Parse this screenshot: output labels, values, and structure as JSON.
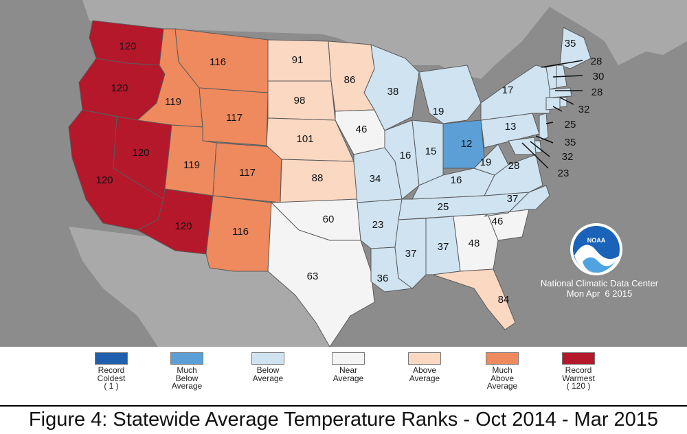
{
  "colors": {
    "record_coldest": "#1f5fad",
    "much_below": "#5c9fd6",
    "below": "#cfe3f1",
    "near": "#f4f4f4",
    "above": "#fbd8c2",
    "much_above": "#ee8a5e",
    "record_warmest": "#b5172b"
  },
  "states": {
    "WA": "120",
    "OR": "120",
    "CA": "120",
    "NV": "120",
    "AZ": "120",
    "ID": "119",
    "MT": "116",
    "WY": "117",
    "UT": "119",
    "CO": "117",
    "NM": "116",
    "ND": "91",
    "SD": "98",
    "NE": "101",
    "KS": "88",
    "OK": "60",
    "TX": "63",
    "MN": "86",
    "IA": "46",
    "MO": "34",
    "AR": "23",
    "LA": "36",
    "WI": "38",
    "IL": "16",
    "MI": "19",
    "IN": "15",
    "OH": "12",
    "KY": "16",
    "TN": "25",
    "MS": "37",
    "AL": "37",
    "GA": "48",
    "FL": "84",
    "SC": "46",
    "NC": "37",
    "VA": "28",
    "WV": "19",
    "PA": "13",
    "NY": "17",
    "ME": "35",
    "NH": "28",
    "VT": "30",
    "MA": "28",
    "RI": "32",
    "CT": "25",
    "NJ": "35",
    "DE": "32",
    "MD": "23"
  },
  "ncdc": {
    "name": "National Climatic Data Center",
    "date": "Mon Apr  6 2015",
    "logo_text": "NOAA"
  },
  "legend": [
    {
      "lines": [
        "Record",
        "Coldest",
        "( 1 )"
      ],
      "color": "#1f5fad"
    },
    {
      "lines": [
        "Much",
        "Below",
        "Average"
      ],
      "color": "#5c9fd6"
    },
    {
      "lines": [
        "Below",
        "Average"
      ],
      "color": "#cfe3f1"
    },
    {
      "lines": [
        "Near",
        "Average"
      ],
      "color": "#f4f4f4"
    },
    {
      "lines": [
        "Above",
        "Average"
      ],
      "color": "#fbd8c2"
    },
    {
      "lines": [
        "Much",
        "Above",
        "Average"
      ],
      "color": "#ee8a5e"
    },
    {
      "lines": [
        "Record",
        "Warmest",
        "( 120 )"
      ],
      "color": "#b5172b"
    }
  ],
  "caption": "Figure 4: Statewide Average Temperature Ranks - Oct 2014 - Mar 2015"
}
